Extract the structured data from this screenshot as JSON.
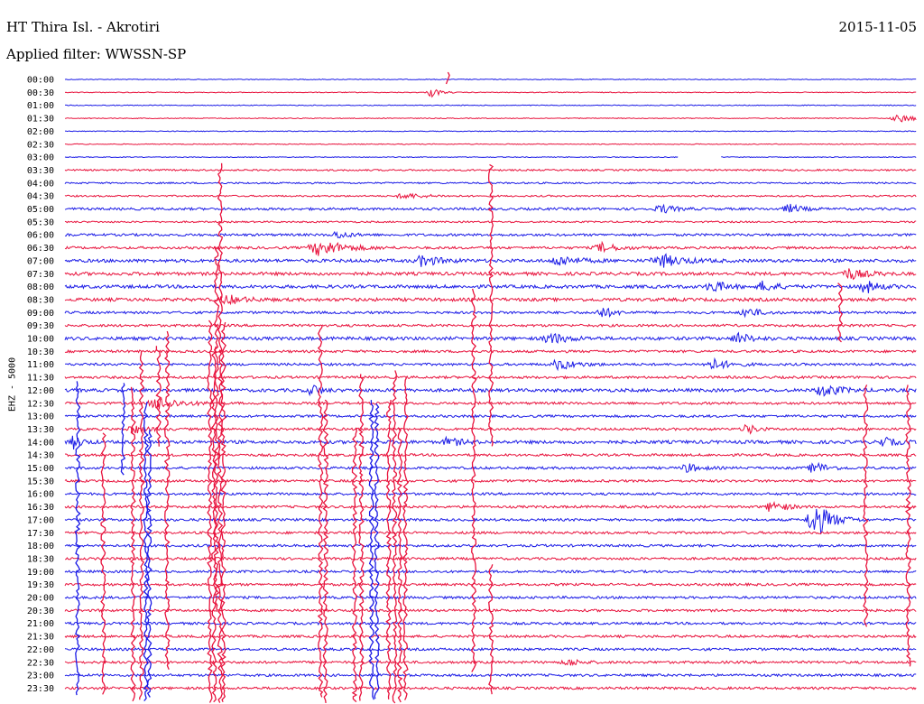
{
  "header": {
    "title": "HT Thira Isl. - Akrotiri",
    "date": "2015-11-05",
    "filter": "Applied filter: WWSSN-SP"
  },
  "channel_label": "EHZ - 5000",
  "colors": {
    "odd_trace": "#1a1ae6",
    "even_trace": "#e8123c",
    "text": "#000000"
  },
  "chart_data": {
    "type": "line",
    "title": "HT Thira Isl. - Akrotiri",
    "ylabel": "EHZ - 5000",
    "xlabel": "",
    "grid": false,
    "row_labels": [
      "00:00",
      "00:30",
      "01:00",
      "01:30",
      "02:00",
      "02:30",
      "03:00",
      "03:30",
      "04:00",
      "04:30",
      "05:00",
      "05:30",
      "06:00",
      "06:30",
      "07:00",
      "07:30",
      "08:00",
      "08:30",
      "09:00",
      "09:30",
      "10:00",
      "10:30",
      "11:00",
      "11:30",
      "12:00",
      "12:30",
      "13:00",
      "13:30",
      "14:00",
      "14:30",
      "15:00",
      "15:30",
      "16:00",
      "16:30",
      "17:00",
      "17:30",
      "18:00",
      "18:30",
      "19:00",
      "19:30",
      "20:00",
      "20:30",
      "21:00",
      "21:30",
      "22:00",
      "22:30",
      "23:00",
      "23:30"
    ],
    "noise_level": [
      1,
      1,
      1,
      1,
      1,
      1,
      1,
      2,
      2,
      2,
      3,
      2,
      3,
      3,
      4,
      4,
      4,
      4,
      3,
      3,
      4,
      3,
      3,
      3,
      4,
      3,
      3,
      3,
      4,
      3,
      3,
      3,
      3,
      3,
      3,
      3,
      3,
      3,
      3,
      3,
      3,
      3,
      3,
      3,
      3,
      3,
      3,
      3
    ],
    "gap": {
      "row": 6,
      "from": 0.72,
      "to": 0.77
    },
    "events": [
      {
        "row": 1,
        "t": 0.43,
        "amp": 6,
        "dur": 0.02
      },
      {
        "row": 3,
        "t": 0.98,
        "amp": 4,
        "dur": 0.05
      },
      {
        "row": 9,
        "t": 0.4,
        "amp": 3,
        "dur": 0.05
      },
      {
        "row": 10,
        "t": 0.7,
        "amp": 5,
        "dur": 0.03
      },
      {
        "row": 10,
        "t": 0.85,
        "amp": 5,
        "dur": 0.03
      },
      {
        "row": 12,
        "t": 0.32,
        "amp": 4,
        "dur": 0.03
      },
      {
        "row": 13,
        "t": 0.3,
        "amp": 9,
        "dur": 0.06
      },
      {
        "row": 13,
        "t": 0.63,
        "amp": 5,
        "dur": 0.04
      },
      {
        "row": 14,
        "t": 0.42,
        "amp": 6,
        "dur": 0.04
      },
      {
        "row": 14,
        "t": 0.58,
        "amp": 6,
        "dur": 0.04
      },
      {
        "row": 14,
        "t": 0.7,
        "amp": 7,
        "dur": 0.05
      },
      {
        "row": 15,
        "t": 0.92,
        "amp": 6,
        "dur": 0.04
      },
      {
        "row": 16,
        "t": 0.76,
        "amp": 7,
        "dur": 0.03
      },
      {
        "row": 16,
        "t": 0.82,
        "amp": 6,
        "dur": 0.03
      },
      {
        "row": 16,
        "t": 0.94,
        "amp": 7,
        "dur": 0.03
      },
      {
        "row": 17,
        "t": 0.19,
        "amp": 5,
        "dur": 0.04
      },
      {
        "row": 18,
        "t": 0.63,
        "amp": 6,
        "dur": 0.03
      },
      {
        "row": 18,
        "t": 0.8,
        "amp": 6,
        "dur": 0.03
      },
      {
        "row": 20,
        "t": 0.57,
        "amp": 6,
        "dur": 0.04
      },
      {
        "row": 20,
        "t": 0.79,
        "amp": 6,
        "dur": 0.03
      },
      {
        "row": 22,
        "t": 0.58,
        "amp": 6,
        "dur": 0.04
      },
      {
        "row": 22,
        "t": 0.76,
        "amp": 6,
        "dur": 0.04
      },
      {
        "row": 24,
        "t": 0.29,
        "amp": 7,
        "dur": 0.02
      },
      {
        "row": 24,
        "t": 0.89,
        "amp": 7,
        "dur": 0.04
      },
      {
        "row": 25,
        "t": 0.11,
        "amp": 7,
        "dur": 0.05
      },
      {
        "row": 27,
        "t": 0.08,
        "amp": 5,
        "dur": 0.03
      },
      {
        "row": 27,
        "t": 0.8,
        "amp": 7,
        "dur": 0.02
      },
      {
        "row": 28,
        "t": 0.01,
        "amp": 7,
        "dur": 0.02
      },
      {
        "row": 28,
        "t": 0.45,
        "amp": 5,
        "dur": 0.03
      },
      {
        "row": 28,
        "t": 0.96,
        "amp": 5,
        "dur": 0.03
      },
      {
        "row": 30,
        "t": 0.73,
        "amp": 5,
        "dur": 0.03
      },
      {
        "row": 30,
        "t": 0.88,
        "amp": 7,
        "dur": 0.03
      },
      {
        "row": 33,
        "t": 0.83,
        "amp": 7,
        "dur": 0.03
      },
      {
        "row": 34,
        "t": 0.88,
        "amp": 20,
        "dur": 0.04
      },
      {
        "row": 45,
        "t": 0.59,
        "amp": 4,
        "dur": 0.03
      }
    ],
    "spikes": [
      {
        "x": 0.45,
        "row0": 0,
        "row1": 0,
        "amp": 8
      },
      {
        "x": 0.5,
        "row0": 7,
        "row1": 28,
        "amp": 6
      },
      {
        "x": 0.48,
        "row0": 17,
        "row1": 45,
        "amp": 12
      },
      {
        "x": 0.08,
        "row0": 25,
        "row1": 47,
        "amp": 18
      },
      {
        "x": 0.09,
        "row0": 22,
        "row1": 47,
        "amp": 14
      },
      {
        "x": 0.17,
        "row0": 20,
        "row1": 47,
        "amp": 20
      },
      {
        "x": 0.175,
        "row0": 22,
        "row1": 47,
        "amp": 20
      },
      {
        "x": 0.178,
        "row0": 14,
        "row1": 40,
        "amp": 16
      },
      {
        "x": 0.182,
        "row0": 8,
        "row1": 47,
        "amp": 22
      },
      {
        "x": 0.186,
        "row0": 20,
        "row1": 47,
        "amp": 18
      },
      {
        "x": 0.3,
        "row0": 20,
        "row1": 47,
        "amp": 14
      },
      {
        "x": 0.306,
        "row0": 26,
        "row1": 47,
        "amp": 18
      },
      {
        "x": 0.34,
        "row0": 28,
        "row1": 47,
        "amp": 16
      },
      {
        "x": 0.348,
        "row0": 24,
        "row1": 47,
        "amp": 18
      },
      {
        "x": 0.38,
        "row0": 26,
        "row1": 47,
        "amp": 18
      },
      {
        "x": 0.387,
        "row0": 24,
        "row1": 47,
        "amp": 22
      },
      {
        "x": 0.393,
        "row0": 28,
        "row1": 47,
        "amp": 16
      },
      {
        "x": 0.4,
        "row0": 24,
        "row1": 47,
        "amp": 14
      },
      {
        "x": 0.045,
        "row0": 28,
        "row1": 47,
        "amp": 10
      },
      {
        "x": 0.12,
        "row0": 20,
        "row1": 45,
        "amp": 8
      },
      {
        "x": 0.5,
        "row0": 38,
        "row1": 47,
        "amp": 8
      },
      {
        "x": 0.94,
        "row0": 24,
        "row1": 42,
        "amp": 6
      },
      {
        "x": 0.99,
        "row0": 24,
        "row1": 45,
        "amp": 6
      },
      {
        "x": 0.91,
        "row0": 16,
        "row1": 20,
        "amp": 4
      },
      {
        "x": 0.11,
        "row0": 21,
        "row1": 28,
        "amp": 6
      }
    ],
    "blue_spikes": [
      {
        "x": 0.095,
        "row0": 26,
        "row1": 47,
        "amp": 16
      },
      {
        "x": 0.099,
        "row0": 28,
        "row1": 47,
        "amp": 14
      },
      {
        "x": 0.36,
        "row0": 26,
        "row1": 47,
        "amp": 18
      },
      {
        "x": 0.366,
        "row0": 26,
        "row1": 47,
        "amp": 14
      },
      {
        "x": 0.015,
        "row0": 24,
        "row1": 47,
        "amp": 10
      },
      {
        "x": 0.068,
        "row0": 24,
        "row1": 30,
        "amp": 8
      }
    ]
  }
}
